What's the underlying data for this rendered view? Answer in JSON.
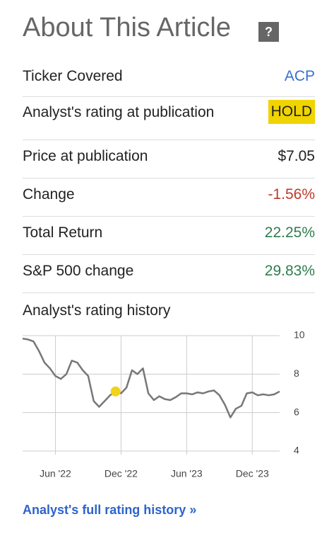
{
  "header": {
    "title": "About This Article",
    "help_icon": "?"
  },
  "rows": [
    {
      "label": "Ticker Covered",
      "value": "ACP",
      "color": "#3a6fd0"
    },
    {
      "label": "Analyst's rating at publication",
      "value": "HOLD",
      "color": "#222222",
      "badge": "#f0d400"
    },
    {
      "label": "Price at publication",
      "value": "$7.05",
      "color": "#222222"
    },
    {
      "label": "Change",
      "value": "-1.56%",
      "color": "#c0392b"
    },
    {
      "label": "Total Return",
      "value": "22.25%",
      "color": "#2e7d4f"
    },
    {
      "label": "S&P 500 change",
      "value": "29.83%",
      "color": "#2e7d4f"
    }
  ],
  "chart_data": {
    "type": "line",
    "title": "Analyst's rating history",
    "categories": [
      null,
      null,
      null,
      null,
      null,
      null,
      "Jun '22",
      null,
      null,
      null,
      null,
      null,
      null,
      null,
      null,
      null,
      null,
      null,
      "Dec '22",
      null,
      null,
      null,
      null,
      null,
      null,
      null,
      null,
      null,
      null,
      null,
      "Jun '23",
      null,
      null,
      null,
      null,
      null,
      null,
      null,
      null,
      null,
      null,
      null,
      "Dec '23",
      null,
      null,
      null,
      null,
      null
    ],
    "series": [
      {
        "color": "#777777",
        "values": [
          9.85,
          9.8,
          9.7,
          9.2,
          8.6,
          8.3,
          7.9,
          7.75,
          8.0,
          8.7,
          8.6,
          8.2,
          7.9,
          6.6,
          6.3,
          6.6,
          6.9,
          7.1,
          7.0,
          7.3,
          8.2,
          8.0,
          8.3,
          7.0,
          6.65,
          6.85,
          6.7,
          6.65,
          6.8,
          7.0,
          7.0,
          6.95,
          7.05,
          7.0,
          7.1,
          7.15,
          6.9,
          6.4,
          5.75,
          6.2,
          6.35,
          7.0,
          7.05,
          6.9,
          6.95,
          6.9,
          6.95,
          7.1
        ]
      }
    ],
    "ylim": [
      4,
      10
    ],
    "yticks": [
      4,
      6,
      8,
      10
    ],
    "grid": true,
    "marker_color": "#f2d21b"
  },
  "link": "Analyst's full rating history »"
}
